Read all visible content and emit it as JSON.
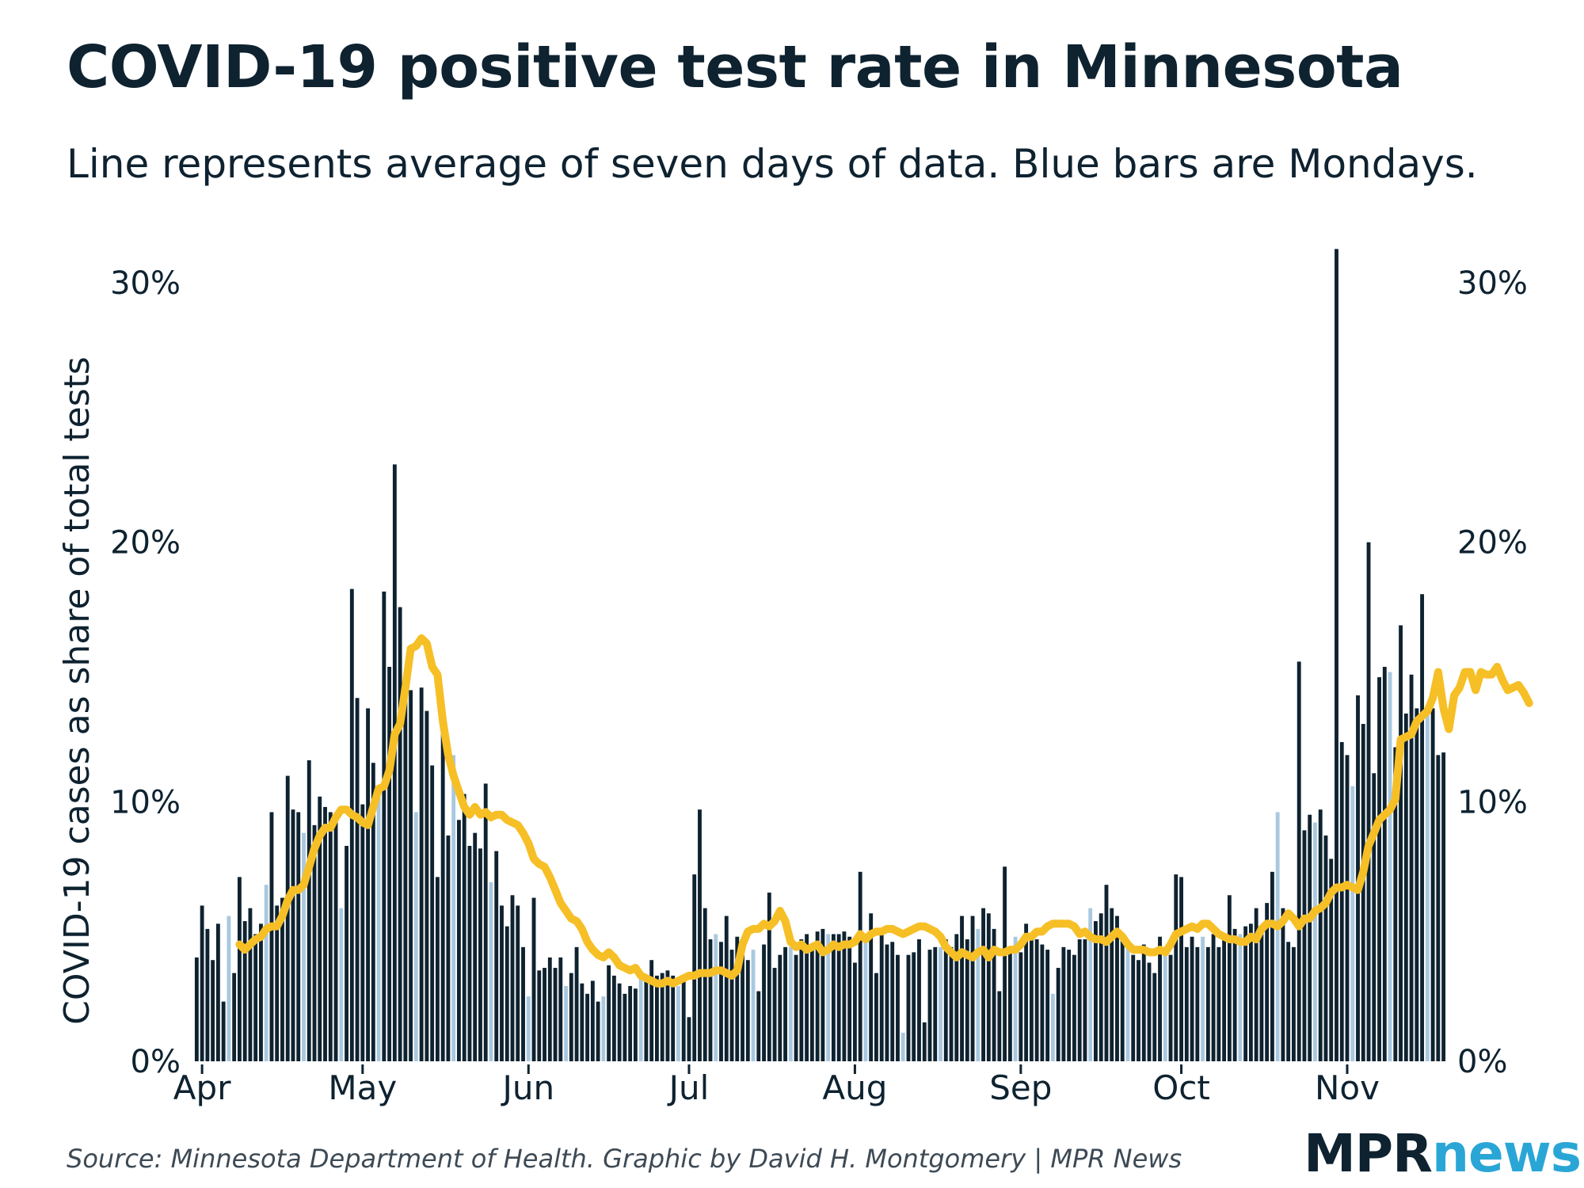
{
  "title": "COVID-19 positive test rate in Minnesota",
  "subtitle": "Line represents average of seven days of data. Blue bars are Mondays.",
  "source": "Source: Minnesota Department of Health. Graphic by David H. Montgomery | MPR News",
  "logo": {
    "part1": "MPR",
    "part2": "news"
  },
  "colors": {
    "bar_dark": "#0e2230",
    "bar_monday": "#a9c8e0",
    "line": "#f6bf26",
    "text": "#0e2230",
    "source_text": "#3d4a55",
    "logo_accent": "#2aa6d6"
  },
  "chart_data": {
    "type": "bar",
    "title": "COVID-19 positive test rate in Minnesota",
    "ylabel": "COVID-19 cases as share of total tests",
    "xlabel": "",
    "ylim": [
      0,
      31
    ],
    "yticks": [
      0,
      10,
      20,
      30
    ],
    "ytick_labels": [
      "0%",
      "10%",
      "20%",
      "30%"
    ],
    "first_date": "2020-03-31",
    "month_ticks": [
      {
        "label": "Apr",
        "day_index": 1
      },
      {
        "label": "May",
        "day_index": 31
      },
      {
        "label": "Jun",
        "day_index": 62
      },
      {
        "label": "Jul",
        "day_index": 92
      },
      {
        "label": "Aug",
        "day_index": 123
      },
      {
        "label": "Sep",
        "day_index": 154
      },
      {
        "label": "Oct",
        "day_index": 184
      },
      {
        "label": "Nov",
        "day_index": 215
      }
    ],
    "bar_series_name": "Daily positive test rate (%)",
    "line_series_name": "7-day average (%)",
    "monday_rule": "bars whose date is a Monday are drawn in light blue",
    "values": [
      4.0,
      6.0,
      5.1,
      3.9,
      5.3,
      2.3,
      5.6,
      3.4,
      7.1,
      5.4,
      5.9,
      4.9,
      5.3,
      6.8,
      9.6,
      6.0,
      6.3,
      11.0,
      9.7,
      9.6,
      8.8,
      11.6,
      9.1,
      10.2,
      9.8,
      9.6,
      9.5,
      5.9,
      8.3,
      18.2,
      14.0,
      9.9,
      13.6,
      11.5,
      10.4,
      18.1,
      15.2,
      23.0,
      17.5,
      14.5,
      14.3,
      9.6,
      14.4,
      13.5,
      11.4,
      7.1,
      13.6,
      8.7,
      11.8,
      9.3,
      10.3,
      8.3,
      8.8,
      8.2,
      10.7,
      6.9,
      8.1,
      6.0,
      5.2,
      6.4,
      6.0,
      4.4,
      2.5,
      6.3,
      3.5,
      3.6,
      4.0,
      3.6,
      4.0,
      2.9,
      3.4,
      4.4,
      3.0,
      2.6,
      3.1,
      2.3,
      2.5,
      3.7,
      3.3,
      3.0,
      2.6,
      2.9,
      2.8,
      3.2,
      3.3,
      3.9,
      3.3,
      3.4,
      3.5,
      3.3,
      2.9,
      3.3,
      1.7,
      7.2,
      9.7,
      5.9,
      4.7,
      4.9,
      4.6,
      5.6,
      4.3,
      4.8,
      4.1,
      3.9,
      4.3,
      2.7,
      4.5,
      6.5,
      3.6,
      4.1,
      4.4,
      4.4,
      4.1,
      4.7,
      4.9,
      4.3,
      5.0,
      5.1,
      4.9,
      4.9,
      4.9,
      5.0,
      4.8,
      3.8,
      7.3,
      4.8,
      5.7,
      3.4,
      5.0,
      4.5,
      4.6,
      4.1,
      1.1,
      4.1,
      4.2,
      4.7,
      1.5,
      4.3,
      4.4,
      4.4,
      4.7,
      4.4,
      4.9,
      5.6,
      4.7,
      5.6,
      5.1,
      5.9,
      5.7,
      5.1,
      2.7,
      7.5,
      4.4,
      4.8,
      4.2,
      5.3,
      4.8,
      4.7,
      4.5,
      4.3,
      2.6,
      3.6,
      4.4,
      4.3,
      4.1,
      4.7,
      4.7,
      5.9,
      5.4,
      5.7,
      6.8,
      5.9,
      5.6,
      4.9,
      4.5,
      4.1,
      3.9,
      4.5,
      3.8,
      3.4,
      4.8,
      4.3,
      4.1,
      7.2,
      7.1,
      4.4,
      4.8,
      4.4,
      4.8,
      4.4,
      4.9,
      4.4,
      4.7,
      6.4,
      5.1,
      4.9,
      5.2,
      5.3,
      5.9,
      4.9,
      6.1,
      7.3,
      9.6,
      5.9,
      4.6,
      4.4,
      15.4,
      8.9,
      9.5,
      9.2,
      9.7,
      8.7,
      7.8,
      31.3,
      12.3,
      11.8,
      10.6,
      14.1,
      13.0,
      20.0,
      11.1,
      14.8,
      15.2,
      15.0,
      12.1,
      16.8,
      13.4,
      14.9,
      13.6,
      18.0,
      13.6,
      13.6,
      11.8,
      11.9
    ],
    "avg_start_index": 8,
    "avg": [
      4.5,
      4.3,
      4.5,
      4.7,
      4.8,
      5.1,
      5.2,
      5.2,
      5.6,
      6.2,
      6.6,
      6.6,
      6.8,
      7.5,
      8.2,
      8.7,
      9.0,
      9.0,
      9.4,
      9.7,
      9.7,
      9.5,
      9.4,
      9.2,
      9.1,
      9.8,
      10.5,
      10.6,
      11.2,
      12.6,
      13.0,
      14.4,
      15.9,
      16.0,
      16.3,
      16.1,
      15.2,
      14.9,
      13.1,
      11.8,
      11.0,
      10.4,
      9.8,
      9.5,
      9.8,
      9.5,
      9.6,
      9.4,
      9.5,
      9.5,
      9.3,
      9.2,
      9.1,
      8.8,
      8.4,
      7.8,
      7.6,
      7.5,
      7.1,
      6.6,
      6.1,
      5.8,
      5.5,
      5.4,
      5.1,
      4.6,
      4.3,
      4.1,
      4.0,
      4.2,
      4.0,
      3.7,
      3.6,
      3.5,
      3.6,
      3.3,
      3.2,
      3.1,
      3.0,
      3.0,
      3.1,
      3.0,
      3.1,
      3.2,
      3.3,
      3.3,
      3.4,
      3.4,
      3.4,
      3.5,
      3.5,
      3.4,
      3.3,
      3.5,
      4.5,
      5.0,
      5.1,
      5.1,
      5.3,
      5.2,
      5.4,
      5.8,
      5.4,
      4.6,
      4.4,
      4.5,
      4.3,
      4.4,
      4.5,
      4.2,
      4.3,
      4.5,
      4.4,
      4.5,
      4.5,
      4.6,
      4.9,
      4.7,
      4.9,
      5.0,
      5.0,
      5.1,
      5.1,
      5.0,
      4.9,
      5.0,
      5.1,
      5.2,
      5.2,
      5.1,
      5.0,
      4.8,
      4.4,
      4.2,
      4.0,
      4.2,
      4.1,
      4.0,
      4.2,
      4.3,
      4.0,
      4.3,
      4.2,
      4.2,
      4.3,
      4.3,
      4.5,
      4.8,
      4.8,
      5.0,
      5.0,
      5.2,
      5.3,
      5.3,
      5.3,
      5.3,
      5.2,
      4.9,
      5.0,
      4.8,
      4.7,
      4.7,
      4.6,
      4.8,
      5.0,
      4.8,
      4.5,
      4.3,
      4.3,
      4.3,
      4.2,
      4.2,
      4.3,
      4.2,
      4.5,
      4.9,
      5.0,
      5.1,
      5.2,
      5.1,
      5.3,
      5.3,
      5.1,
      4.9,
      4.8,
      4.7,
      4.7,
      4.6,
      4.6,
      4.8,
      4.7,
      5.1,
      5.3,
      5.3,
      5.2,
      5.4,
      5.7,
      5.5,
      5.2,
      5.5,
      5.5,
      5.8,
      5.9,
      6.1,
      6.5,
      6.7,
      6.7,
      6.8,
      6.7,
      6.6,
      7.3,
      8.3,
      8.8,
      9.3,
      9.5,
      9.7,
      10.1,
      12.4,
      12.5,
      12.6,
      13.1,
      13.3,
      13.5,
      14.0,
      15.0,
      13.6,
      12.8,
      14.1,
      14.4,
      15.0,
      15.0,
      14.3,
      15.0,
      14.9,
      14.9,
      15.2,
      14.7,
      14.3,
      14.4,
      14.5,
      14.2,
      13.8
    ]
  }
}
